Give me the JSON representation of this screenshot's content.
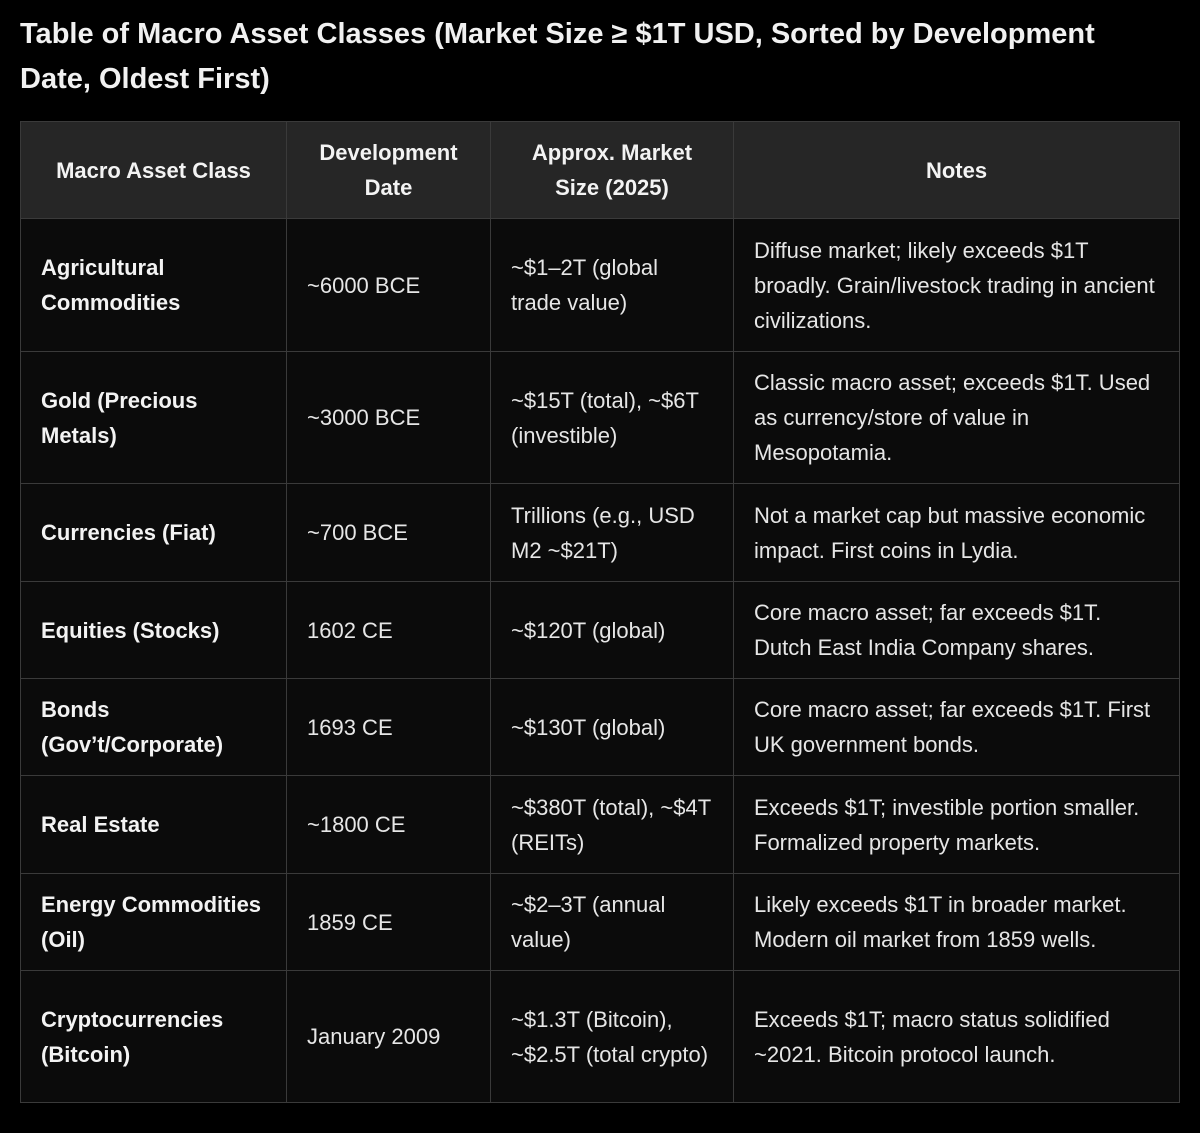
{
  "title": "Table of Macro Asset Classes (Market Size ≥ $1T USD, Sorted by Development Date, Oldest First)",
  "columns": [
    "Macro Asset Class",
    "Development Date",
    "Approx. Market Size (2025)",
    "Notes"
  ],
  "rows": [
    {
      "asset": "Agricultural Commodities",
      "date": "~6000 BCE",
      "size": "~$1–2T (global trade value)",
      "notes": "Diffuse market; likely exceeds $1T broadly. Grain/livestock trading in ancient civilizations."
    },
    {
      "asset": "Gold (Precious Metals)",
      "date": "~3000 BCE",
      "size": "~$15T (total), ~$6T (investible)",
      "notes": "Classic macro asset; exceeds $1T. Used as currency/store of value in Mesopotamia."
    },
    {
      "asset": "Currencies (Fiat)",
      "date": "~700 BCE",
      "size": "Trillions (e.g., USD M2 ~$21T)",
      "notes": "Not a market cap but massive economic impact. First coins in Lydia."
    },
    {
      "asset": "Equities (Stocks)",
      "date": "1602 CE",
      "size": "~$120T (global)",
      "notes": "Core macro asset; far exceeds $1T. Dutch East India Company shares."
    },
    {
      "asset": "Bonds (Gov’t/Corporate)",
      "date": "1693 CE",
      "size": "~$130T (global)",
      "notes": "Core macro asset; far exceeds $1T. First UK government bonds."
    },
    {
      "asset": "Real Estate",
      "date": "~1800 CE",
      "size": "~$380T (total), ~$4T (REITs)",
      "notes": "Exceeds $1T; investible portion smaller. Formalized property markets."
    },
    {
      "asset": "Energy Commodities (Oil)",
      "date": "1859 CE",
      "size": "~$2–3T (annual value)",
      "notes": "Likely exceeds $1T in broader market. Modern oil market from 1859 wells."
    },
    {
      "asset": "Cryptocurrencies (Bitcoin)",
      "date": "January 2009",
      "size": "~$1.3T (Bitcoin), ~$2.5T (total crypto)",
      "notes": "Exceeds $1T; macro status solidified ~2021. Bitcoin protocol launch."
    }
  ]
}
